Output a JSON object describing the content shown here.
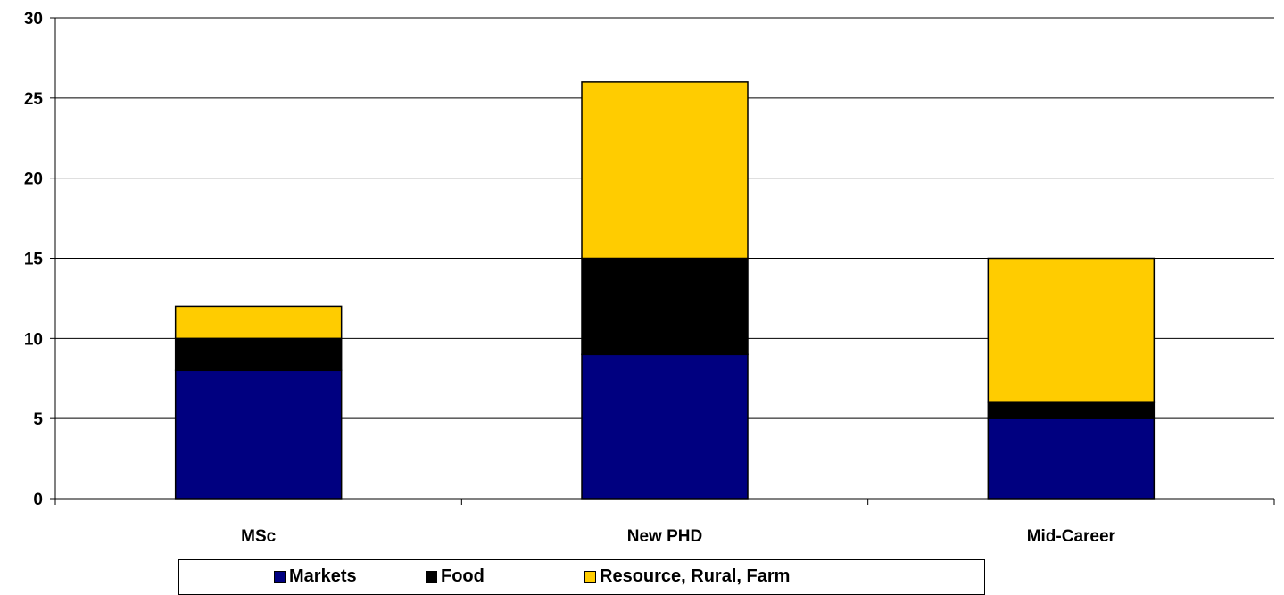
{
  "chart_data": {
    "type": "bar",
    "stacked": true,
    "categories": [
      "MSc",
      "New PHD",
      "Mid-Career"
    ],
    "series": [
      {
        "name": "Markets",
        "values": [
          8,
          9,
          5
        ],
        "color": "#000080"
      },
      {
        "name": "Food",
        "values": [
          2,
          6,
          1
        ],
        "color": "#000000"
      },
      {
        "name": "Resource, Rural, Farm",
        "values": [
          2,
          11,
          9
        ],
        "color": "#FFCC00"
      }
    ],
    "yticks": [
      "0",
      "5",
      "10",
      "15",
      "20",
      "25",
      "30"
    ],
    "ylim": [
      0,
      30
    ],
    "grid": true,
    "legend_position": "bottom",
    "title": "",
    "xlabel": "",
    "ylabel": ""
  }
}
